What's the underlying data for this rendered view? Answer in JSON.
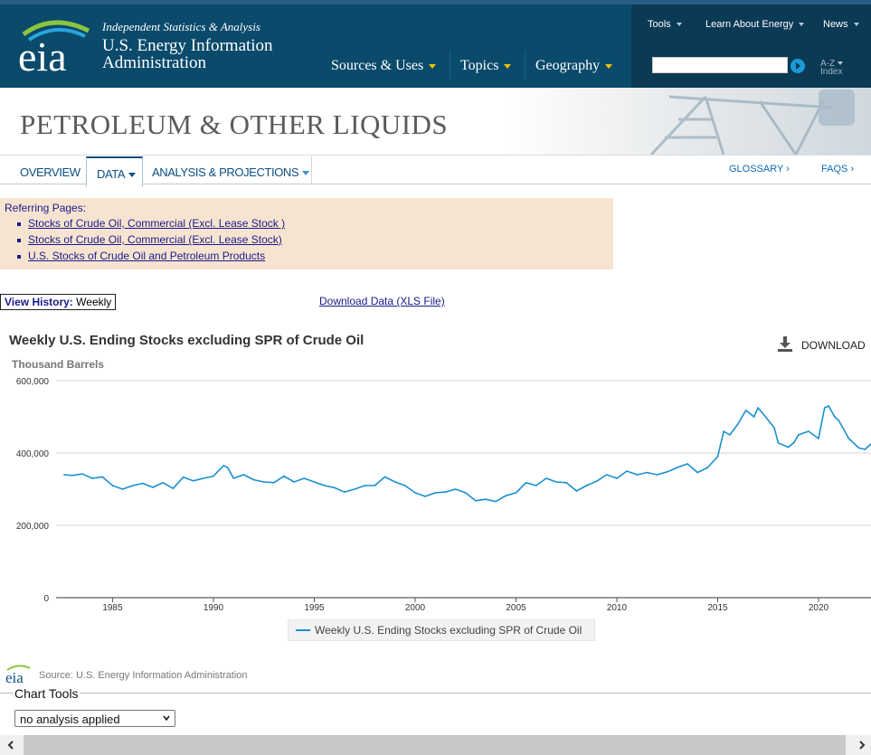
{
  "header": {
    "tagline": "Independent Statistics & Analysis",
    "org_line1": "U.S. Energy Information",
    "org_line2": "Administration",
    "logo_text": "eia",
    "main_nav": [
      "Sources & Uses",
      "Topics",
      "Geography"
    ],
    "top_nav": [
      "Tools",
      "Learn About Energy",
      "News"
    ],
    "search_placeholder": "",
    "az_line1": "A-Z",
    "az_line2": "Index"
  },
  "banner": {
    "title": "PETROLEUM & OTHER LIQUIDS"
  },
  "tabs": {
    "items": [
      "OVERVIEW",
      "DATA",
      "ANALYSIS & PROJECTIONS"
    ],
    "active": "DATA",
    "glossary": "GLOSSARY ›",
    "faqs": "FAQS ›"
  },
  "referring": {
    "heading": "Referring Pages:",
    "links": [
      "Stocks of Crude Oil, Commercial (Excl. Lease Stock )",
      "Stocks of Crude Oil, Commercial (Excl. Lease Stock)",
      "U.S. Stocks of Crude Oil and Petroleum Products"
    ]
  },
  "history": {
    "label": "View History:",
    "value": "Weekly"
  },
  "download_link": "Download Data (XLS File)",
  "chart_controls": {
    "download_label": "DOWNLOAD"
  },
  "source": {
    "logo_text": "eia",
    "text": "Source: U.S. Energy Information Administration"
  },
  "chart_tools": {
    "legend": "Chart Tools",
    "select_value": "no analysis applied"
  },
  "colors": {
    "header": "#0a4a6b",
    "accent": "#f2c200",
    "line": "#1a8fd0",
    "ref_bg": "#f7e4d0"
  },
  "chart_data": {
    "type": "line",
    "title": "Weekly U.S. Ending Stocks excluding SPR of Crude Oil",
    "ylabel": "Thousand Barrels",
    "xlabel": "",
    "ylim": [
      0,
      600000
    ],
    "xlim": [
      1982.2,
      2022.6
    ],
    "y_ticks": [
      "0",
      "200,000",
      "400,000",
      "600,000"
    ],
    "y_tick_values": [
      0,
      200000,
      400000,
      600000
    ],
    "x_ticks": [
      "1985",
      "1990",
      "1995",
      "2000",
      "2005",
      "2010",
      "2015",
      "2020"
    ],
    "x_tick_values": [
      1985,
      1990,
      1995,
      2000,
      2005,
      2010,
      2015,
      2020
    ],
    "grid": true,
    "legend": "bottom-center",
    "series": [
      {
        "name": "Weekly U.S. Ending Stocks excluding SPR of Crude Oil",
        "x": [
          1982.6,
          1983.0,
          1983.5,
          1984.0,
          1984.5,
          1985.0,
          1985.5,
          1986.0,
          1986.5,
          1987.0,
          1987.5,
          1988.0,
          1988.5,
          1989.0,
          1989.5,
          1990.0,
          1990.5,
          1990.7,
          1991.0,
          1991.5,
          1992.0,
          1992.5,
          1993.0,
          1993.5,
          1994.0,
          1994.5,
          1995.0,
          1995.5,
          1996.0,
          1996.5,
          1997.0,
          1997.5,
          1998.0,
          1998.5,
          1999.0,
          1999.5,
          2000.0,
          2000.5,
          2001.0,
          2001.5,
          2002.0,
          2002.5,
          2003.0,
          2003.5,
          2004.0,
          2004.5,
          2005.0,
          2005.5,
          2006.0,
          2006.5,
          2007.0,
          2007.5,
          2008.0,
          2008.5,
          2009.0,
          2009.5,
          2010.0,
          2010.5,
          2011.0,
          2011.5,
          2012.0,
          2012.5,
          2013.0,
          2013.5,
          2014.0,
          2014.5,
          2015.0,
          2015.3,
          2015.6,
          2016.0,
          2016.4,
          2016.8,
          2017.0,
          2017.3,
          2017.8,
          2018.0,
          2018.5,
          2018.8,
          2019.0,
          2019.5,
          2020.0,
          2020.3,
          2020.5,
          2020.8,
          2021.0,
          2021.5,
          2022.0,
          2022.3,
          2022.6
        ],
        "values": [
          340000,
          338000,
          342000,
          330000,
          334000,
          310000,
          300000,
          310000,
          316000,
          305000,
          318000,
          302000,
          333000,
          323000,
          330000,
          336000,
          365000,
          360000,
          330000,
          340000,
          326000,
          320000,
          318000,
          336000,
          320000,
          330000,
          320000,
          310000,
          304000,
          292000,
          300000,
          310000,
          310000,
          334000,
          320000,
          310000,
          290000,
          280000,
          290000,
          292000,
          300000,
          290000,
          268000,
          272000,
          266000,
          282000,
          290000,
          318000,
          310000,
          330000,
          320000,
          318000,
          295000,
          310000,
          322000,
          340000,
          330000,
          350000,
          340000,
          346000,
          340000,
          348000,
          360000,
          370000,
          346000,
          360000,
          390000,
          460000,
          450000,
          480000,
          518000,
          500000,
          525000,
          505000,
          470000,
          428000,
          416000,
          430000,
          450000,
          460000,
          440000,
          525000,
          530000,
          500000,
          490000,
          440000,
          414000,
          410000,
          425000
        ]
      }
    ]
  }
}
